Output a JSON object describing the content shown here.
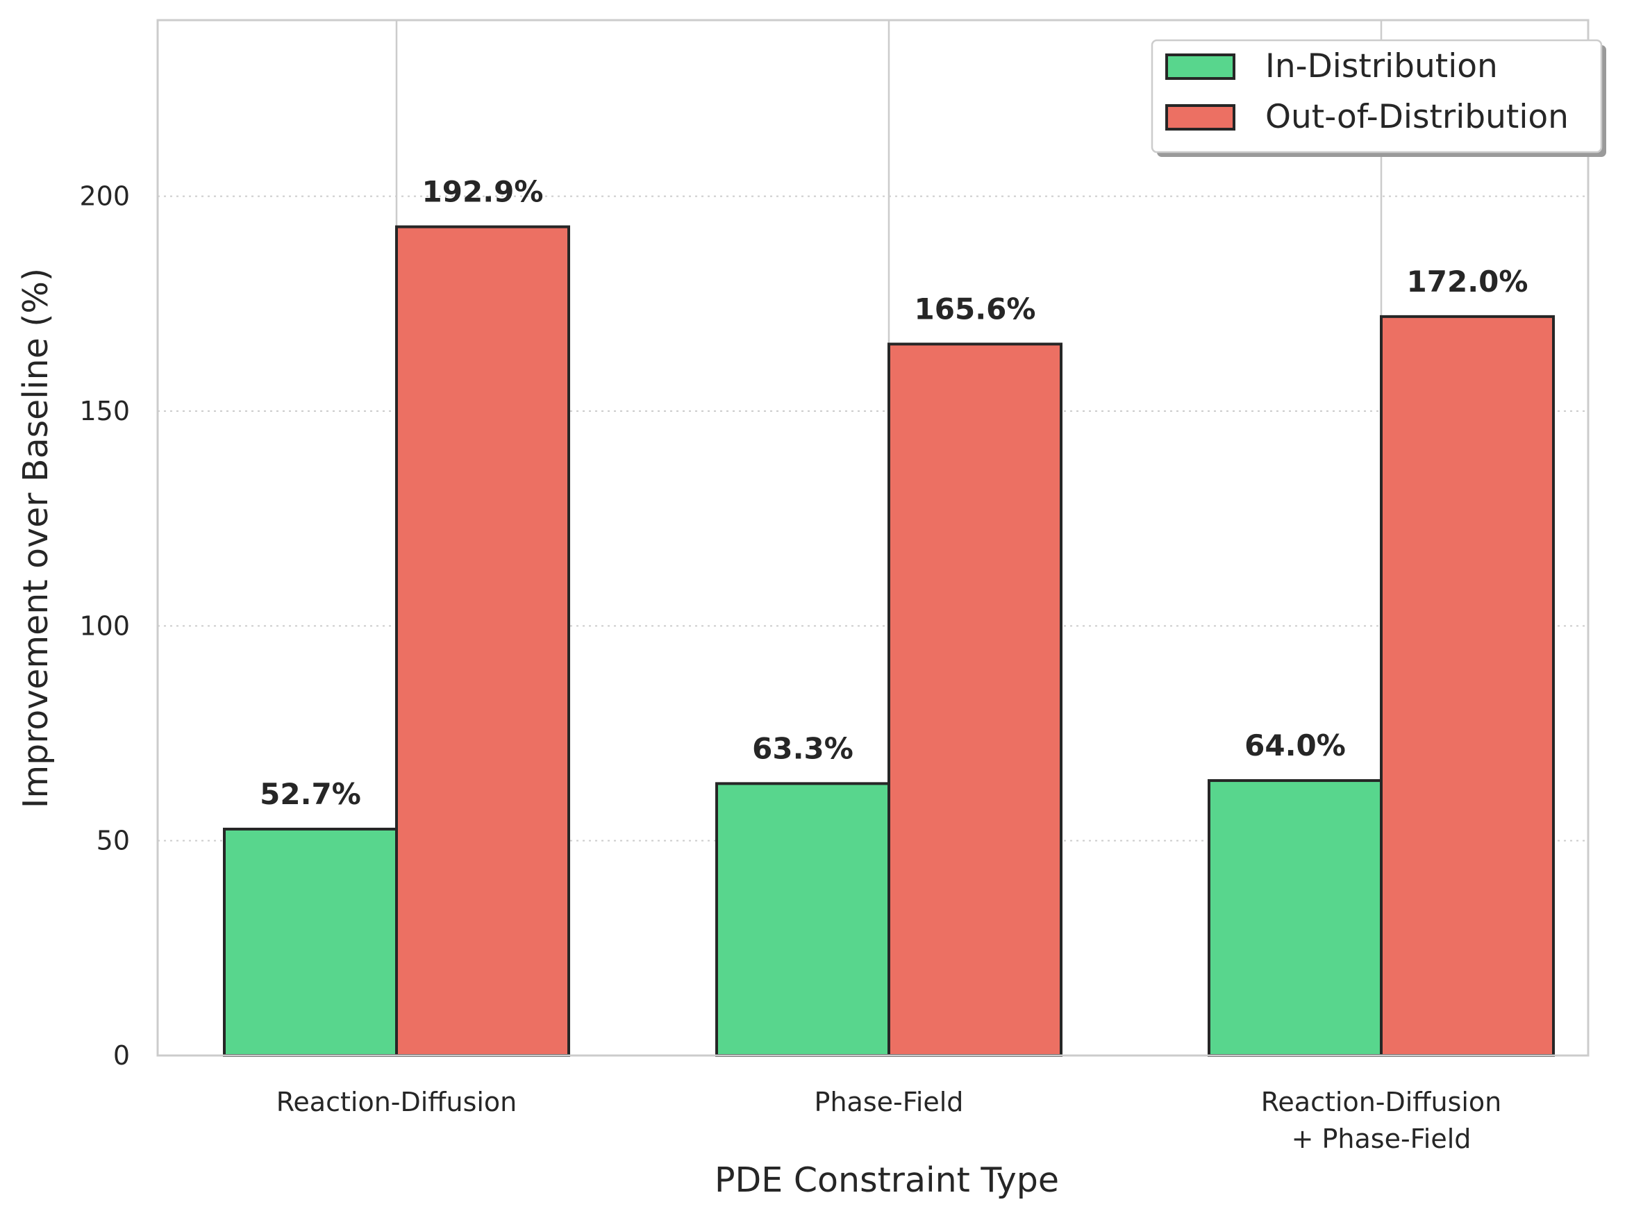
{
  "chart_data": {
    "type": "bar",
    "title": "",
    "xlabel": "PDE Constraint Type",
    "ylabel": "Improvement over Baseline (%)",
    "ylim": [
      0,
      241
    ],
    "yticks": [
      0,
      50,
      100,
      150,
      200
    ],
    "grid": true,
    "legend_position": "top-right",
    "categories": [
      [
        "Reaction-Diffusion"
      ],
      [
        "Phase-Field"
      ],
      [
        "Reaction-Diffusion",
        "+ Phase-Field"
      ]
    ],
    "series": [
      {
        "name": "In-Distribution",
        "color": "#58D68D",
        "values": [
          52.7,
          63.3,
          64.0
        ],
        "labels": [
          "52.7%",
          "63.3%",
          "64.0%"
        ]
      },
      {
        "name": "Out-of-Distribution",
        "color": "#EC7063",
        "values": [
          192.9,
          165.6,
          172.0
        ],
        "labels": [
          "192.9%",
          "165.6%",
          "172.0%"
        ]
      }
    ]
  }
}
